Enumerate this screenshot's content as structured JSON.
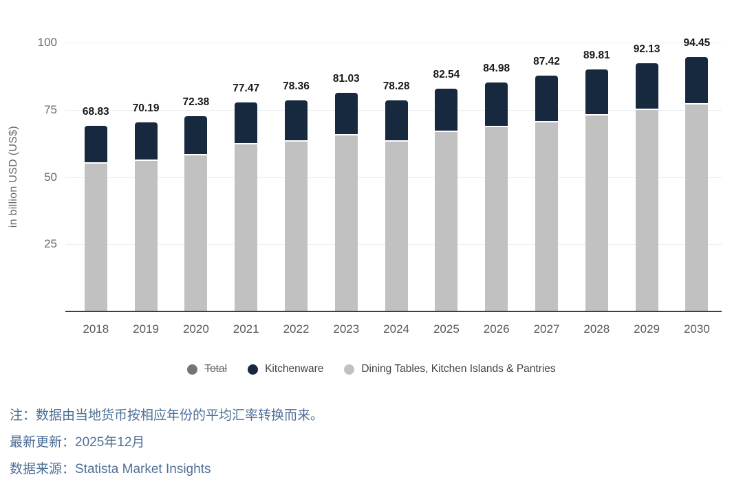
{
  "chart_data": {
    "type": "bar",
    "stacked": true,
    "title": "",
    "xlabel": "",
    "ylabel": "in billion USD (US$)",
    "ylim": [
      0,
      100
    ],
    "yticks": [
      25,
      50,
      75,
      100
    ],
    "grid": true,
    "legend_position": "bottom",
    "categories": [
      "2018",
      "2019",
      "2020",
      "2021",
      "2022",
      "2023",
      "2024",
      "2025",
      "2026",
      "2027",
      "2028",
      "2029",
      "2030"
    ],
    "series": [
      {
        "name": "Dining Tables, Kitchen Islands & Pantries",
        "color": "#C1C1C1",
        "values": [
          54.8,
          55.7,
          57.9,
          62.0,
          63.0,
          65.1,
          62.8,
          66.5,
          68.4,
          70.2,
          72.7,
          74.7,
          76.8
        ]
      },
      {
        "name": "Kitchenware",
        "color": "#17293E",
        "values": [
          14.03,
          14.49,
          14.48,
          15.47,
          15.36,
          15.93,
          15.48,
          16.04,
          16.58,
          17.22,
          17.11,
          17.43,
          17.65
        ]
      }
    ],
    "totals": [
      "68.83",
      "70.19",
      "72.38",
      "77.47",
      "78.36",
      "81.03",
      "78.28",
      "82.54",
      "84.98",
      "87.42",
      "89.81",
      "92.13",
      "94.45"
    ],
    "legend": [
      {
        "label": "Total",
        "color": "#757575",
        "disabled": true
      },
      {
        "label": "Kitchenware",
        "color": "#17293E",
        "disabled": false
      },
      {
        "label": "Dining Tables, Kitchen Islands & Pantries",
        "color": "#C1C1C1",
        "disabled": false
      }
    ]
  },
  "footer": {
    "note": "注：数据由当地货币按相应年份的平均汇率转换而来。",
    "updated": "最新更新：2025年12月",
    "source": "数据来源：Statista Market Insights"
  },
  "colors": {
    "bar_kitchenware": "#17293E",
    "bar_dining": "#C1C1C1",
    "legend_total": "#757575",
    "footer_text": "#4E6F96",
    "axis_line": "#3D3F42",
    "gridline": "#EBEDEE"
  }
}
